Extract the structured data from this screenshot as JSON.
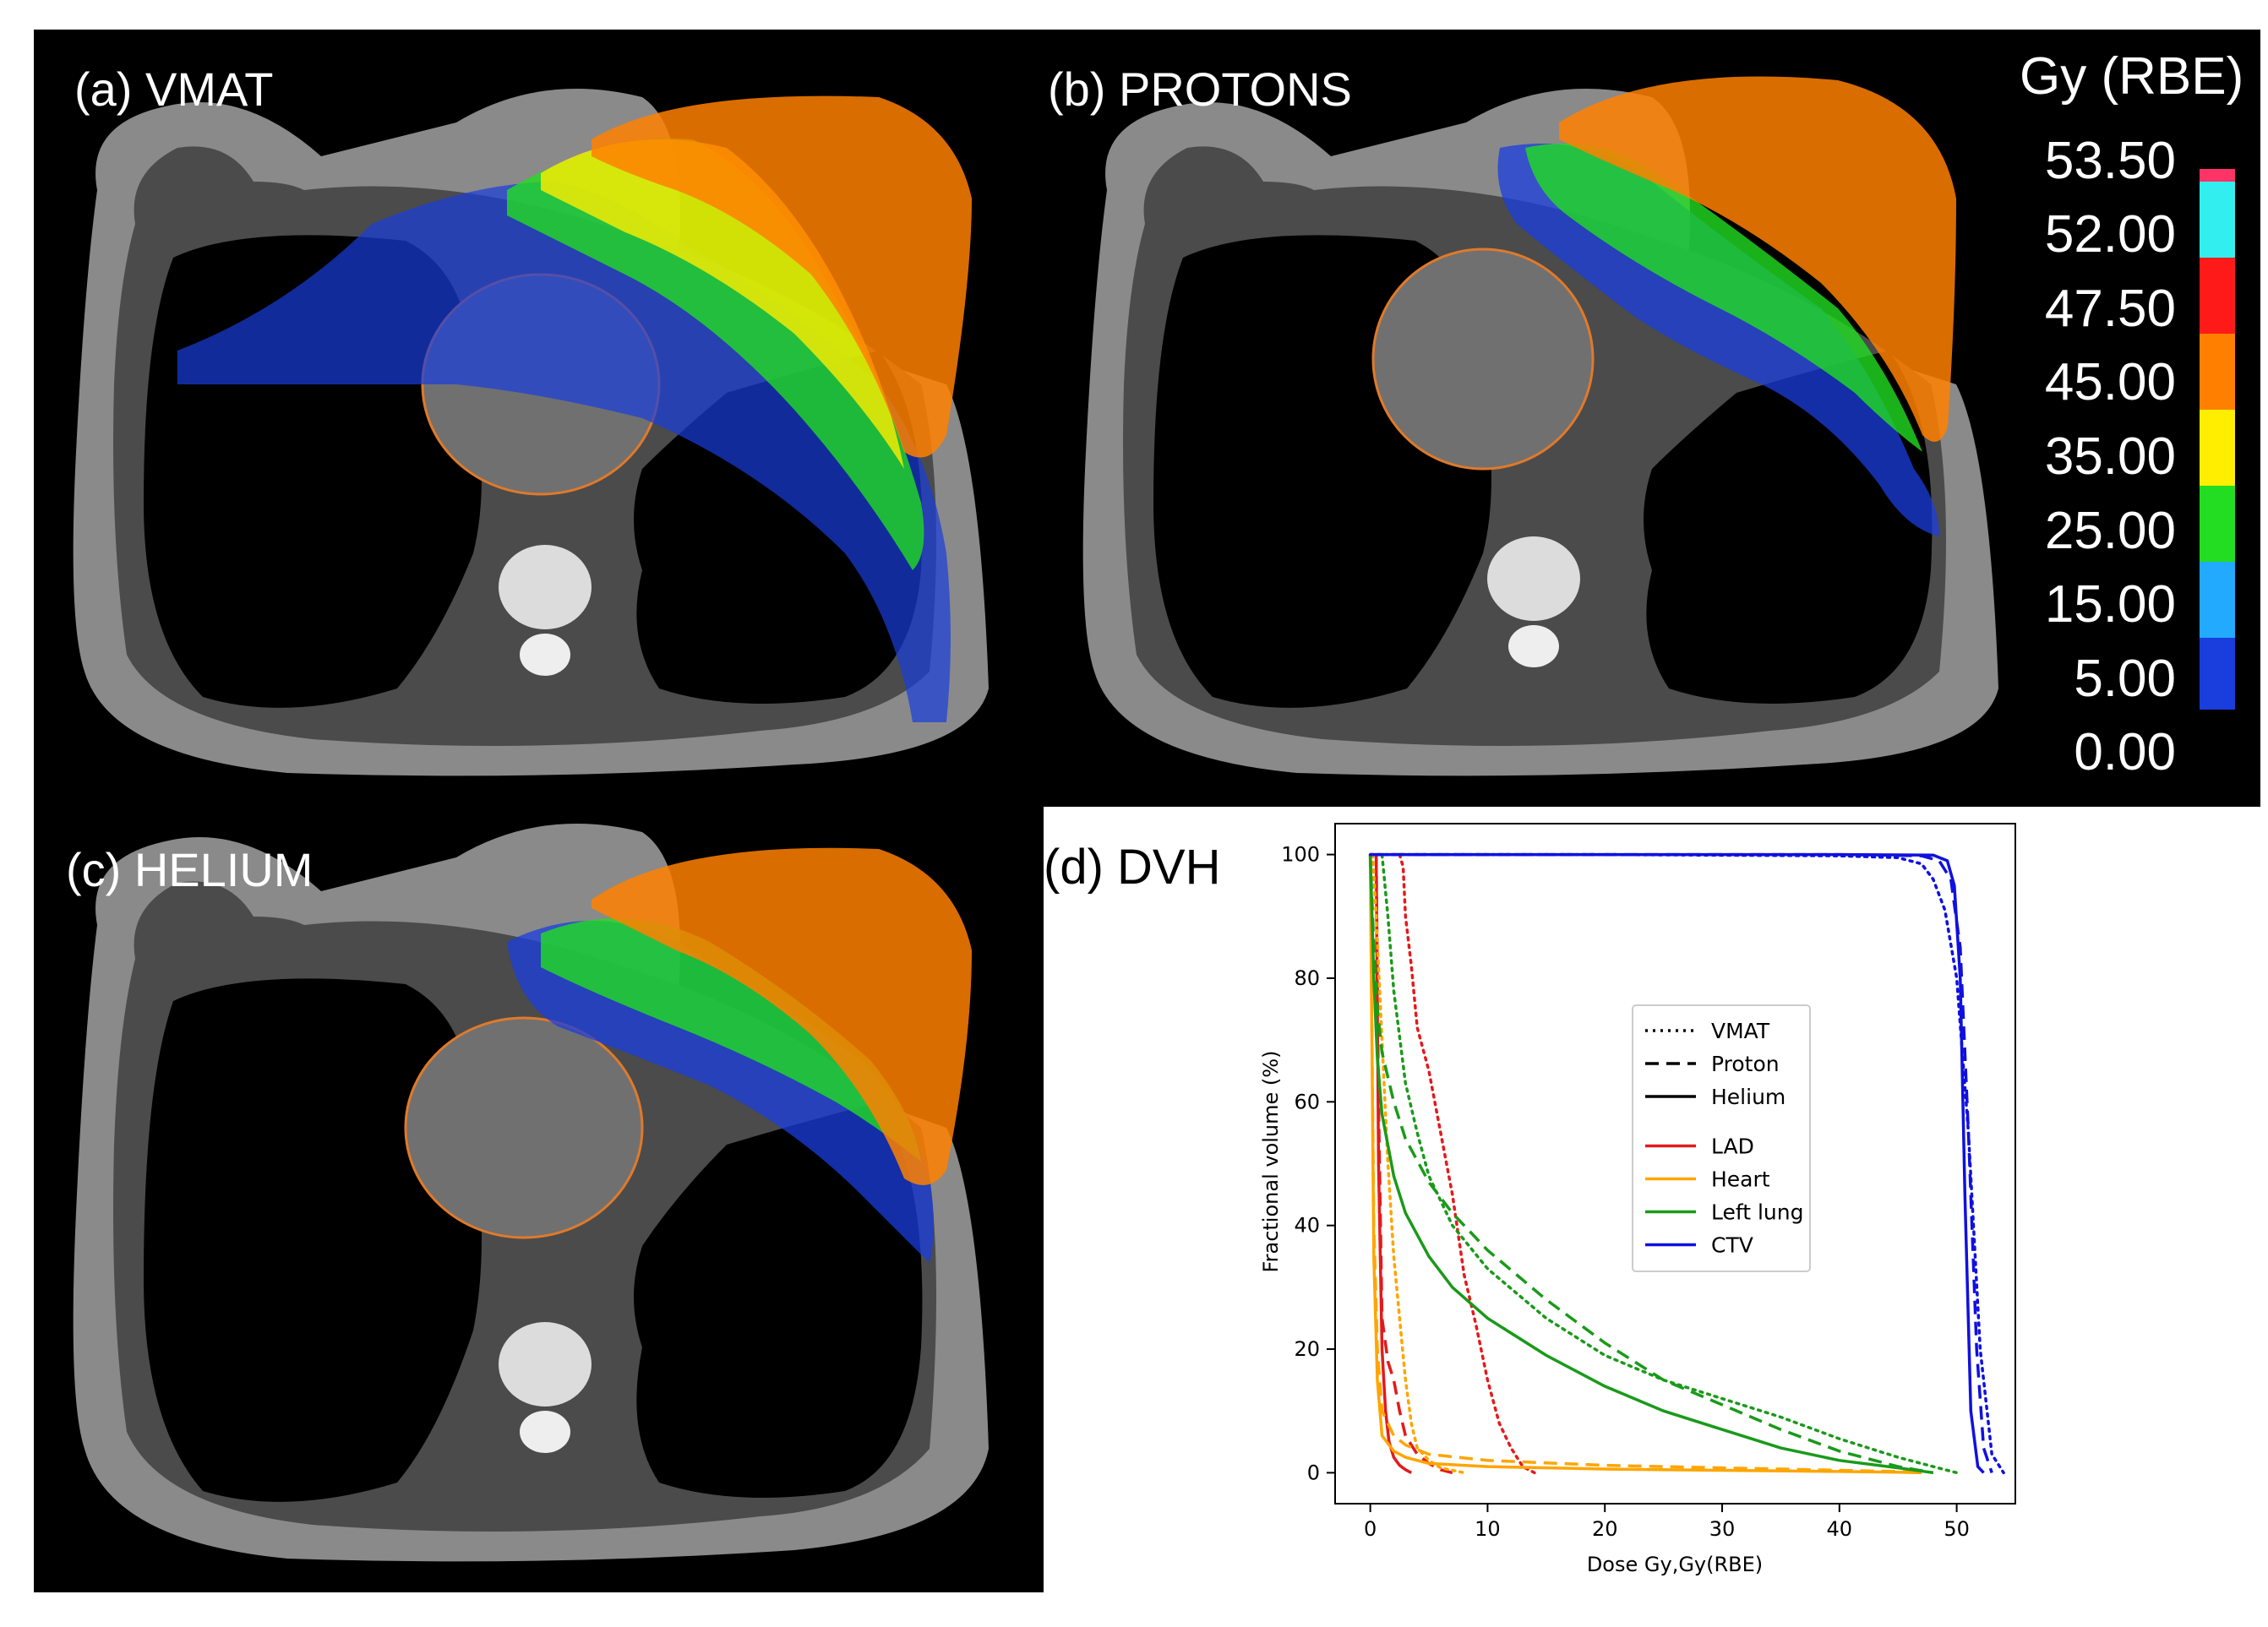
{
  "panels": {
    "a_label": "(a) VMAT",
    "b_label": "(b) PROTONS",
    "c_label": "(c) HELIUM",
    "d_label": "(d) DVH"
  },
  "colorbar": {
    "title": "Gy (RBE)",
    "labels": [
      "53.50",
      "52.00",
      "47.50",
      "45.00",
      "35.00",
      "25.00",
      "15.00",
      "5.00",
      "0.00"
    ],
    "colors": [
      "#ff3366",
      "#33eeee",
      "#ff1a1a",
      "#ff8000",
      "#ffee00",
      "#22dd22",
      "#22aaff",
      "#1a3ddd"
    ]
  },
  "chart_data": {
    "type": "line",
    "xlabel": "Dose Gy,Gy(RBE)",
    "ylabel": "Fractional volume (%)",
    "xlim": [
      -3,
      55
    ],
    "ylim": [
      -5,
      105
    ],
    "xticks": [
      0,
      10,
      20,
      30,
      40,
      50
    ],
    "yticks": [
      0,
      20,
      40,
      60,
      80,
      100
    ],
    "legend_position": "center",
    "legend_styles": [
      {
        "name": "VMAT",
        "dash": "dotted"
      },
      {
        "name": "Proton",
        "dash": "dashed"
      },
      {
        "name": "Helium",
        "dash": "solid"
      }
    ],
    "legend_structures": [
      {
        "name": "LAD",
        "color": "#e31a1c"
      },
      {
        "name": "Heart",
        "color": "#ffa500"
      },
      {
        "name": "Left lung",
        "color": "#1a9a1a"
      },
      {
        "name": "CTV",
        "color": "#1010e0"
      }
    ],
    "series": [
      {
        "structure": "LAD",
        "technique": "VMAT",
        "color": "#e31a1c",
        "dash": "dotted",
        "x": [
          2.5,
          2.8,
          3.0,
          3.5,
          4.0,
          5.0,
          6.0,
          7.0,
          8.0,
          9.0,
          10.0,
          11.0,
          12.0,
          13.0,
          14.0
        ],
        "y": [
          100,
          98,
          90,
          82,
          72,
          65,
          55,
          45,
          32,
          24,
          15,
          8,
          4,
          1,
          0
        ]
      },
      {
        "structure": "LAD",
        "technique": "Proton",
        "color": "#e31a1c",
        "dash": "dashed",
        "x": [
          0.5,
          0.7,
          1.0,
          1.5,
          2.0,
          2.5,
          3.0,
          4.0,
          5.0,
          6.0,
          7.0
        ],
        "y": [
          100,
          60,
          25,
          18,
          15,
          10,
          6,
          3,
          1.5,
          0.5,
          0
        ]
      },
      {
        "structure": "LAD",
        "technique": "Helium",
        "color": "#e31a1c",
        "dash": "solid",
        "x": [
          0.5,
          0.7,
          1.0,
          1.3,
          1.6,
          2.0,
          2.5,
          3.0,
          3.5
        ],
        "y": [
          100,
          50,
          20,
          10,
          5,
          2.5,
          1.2,
          0.5,
          0
        ]
      },
      {
        "structure": "Heart",
        "technique": "VMAT",
        "color": "#ffa500",
        "dash": "dotted",
        "x": [
          0.2,
          0.5,
          1.0,
          1.5,
          2.0,
          2.5,
          3.0,
          3.5,
          4.0,
          5.0,
          6.0,
          8.0
        ],
        "y": [
          100,
          90,
          70,
          50,
          35,
          25,
          15,
          8,
          4,
          2,
          0.8,
          0
        ]
      },
      {
        "structure": "Heart",
        "technique": "Proton",
        "color": "#ffa500",
        "dash": "dashed",
        "x": [
          0,
          0.3,
          0.6,
          1.0,
          2.0,
          3.0,
          5.0,
          10.0,
          20.0,
          30.0,
          40.0,
          45.0,
          47.0
        ],
        "y": [
          100,
          40,
          20,
          10,
          6,
          4.5,
          3,
          2,
          1.2,
          0.8,
          0.4,
          0.2,
          0
        ]
      },
      {
        "structure": "Heart",
        "technique": "Helium",
        "color": "#ffa500",
        "dash": "solid",
        "x": [
          0,
          0.3,
          0.6,
          1.0,
          2.0,
          3.0,
          5.0,
          10.0,
          20.0,
          30.0,
          40.0,
          45.0,
          47.0
        ],
        "y": [
          100,
          35,
          15,
          6,
          3.5,
          2.5,
          1.5,
          1,
          0.6,
          0.4,
          0.2,
          0.1,
          0
        ]
      },
      {
        "structure": "Left lung",
        "technique": "VMAT",
        "color": "#1a9a1a",
        "dash": "dotted",
        "x": [
          1.0,
          1.5,
          2.0,
          3.0,
          4.0,
          5.0,
          7.0,
          10.0,
          15.0,
          20.0,
          25.0,
          30.0,
          35.0,
          40.0,
          45.0,
          48.0,
          50.0
        ],
        "y": [
          100,
          90,
          78,
          63,
          55,
          48,
          40,
          33,
          25,
          19,
          15,
          12,
          9,
          5.5,
          2.5,
          1,
          0
        ]
      },
      {
        "structure": "Left lung",
        "technique": "Proton",
        "color": "#1a9a1a",
        "dash": "dashed",
        "x": [
          0,
          0.3,
          0.6,
          1.0,
          2.0,
          3.0,
          5.0,
          7.0,
          10.0,
          15.0,
          20.0,
          25.0,
          30.0,
          35.0,
          40.0,
          45.0,
          48.0
        ],
        "y": [
          100,
          85,
          75,
          68,
          60,
          54,
          47,
          42,
          36,
          28,
          21,
          15,
          11,
          7,
          3.5,
          1,
          0
        ]
      },
      {
        "structure": "Left lung",
        "technique": "Helium",
        "color": "#1a9a1a",
        "dash": "solid",
        "x": [
          0,
          0.3,
          0.6,
          1.0,
          2.0,
          3.0,
          5.0,
          7.0,
          10.0,
          15.0,
          20.0,
          25.0,
          30.0,
          35.0,
          40.0,
          45.0,
          48.0
        ],
        "y": [
          100,
          80,
          67,
          58,
          48,
          42,
          35,
          30,
          25,
          19,
          14,
          10,
          7,
          4,
          2,
          0.8,
          0
        ]
      },
      {
        "structure": "CTV",
        "technique": "VMAT",
        "color": "#1010e0",
        "dash": "dotted",
        "x": [
          0,
          20,
          40,
          45,
          47,
          48,
          49,
          50,
          51,
          52,
          53,
          54
        ],
        "y": [
          100,
          100,
          99.8,
          99.5,
          98.5,
          96,
          91,
          80,
          55,
          20,
          3,
          0
        ]
      },
      {
        "structure": "CTV",
        "technique": "Proton",
        "color": "#1010e0",
        "dash": "dashed",
        "x": [
          0,
          20,
          40,
          47,
          48.5,
          49.5,
          50.3,
          51.0,
          51.7,
          52.3,
          53.0
        ],
        "y": [
          100,
          100,
          100,
          99.8,
          99,
          96,
          85,
          55,
          20,
          4,
          0
        ]
      },
      {
        "structure": "CTV",
        "technique": "Helium",
        "color": "#1010e0",
        "dash": "solid",
        "x": [
          0,
          20,
          40,
          48,
          49.2,
          49.8,
          50.3,
          50.7,
          51.2,
          51.8,
          52.3
        ],
        "y": [
          100,
          100,
          100,
          99.9,
          99,
          95,
          80,
          45,
          10,
          1,
          0
        ]
      }
    ]
  }
}
